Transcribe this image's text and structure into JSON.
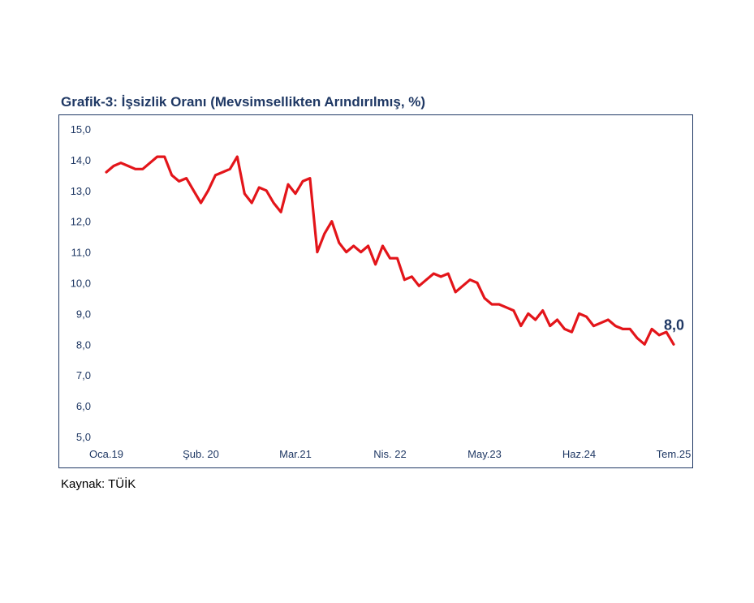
{
  "title": "Grafik-3: İşsizlik Oranı (Mevsimsellikten Arındırılmış, %)",
  "source": "Kaynak: TÜİK",
  "colors": {
    "line": "#e3151a",
    "title": "#1f3864",
    "label": "#1f3864"
  },
  "chart_data": {
    "type": "line",
    "title": "Grafik-3: İşsizlik Oranı (Mevsimsellikten Arındırılmış, %)",
    "xlabel": "",
    "ylabel": "",
    "ylim": [
      5.0,
      15.0
    ],
    "yticks": [
      "15,0",
      "14,0",
      "13,0",
      "12,0",
      "11,0",
      "10,0",
      "9,0",
      "8,0",
      "7,0",
      "6,0",
      "5,0"
    ],
    "x_tick_labels": [
      {
        "label": "Oca.19",
        "index": 0
      },
      {
        "label": "Şub. 20",
        "index": 13
      },
      {
        "label": "Mar.21",
        "index": 26
      },
      {
        "label": "Nis. 22",
        "index": 39
      },
      {
        "label": "May.23",
        "index": 52
      },
      {
        "label": "Haz.24",
        "index": 65
      },
      {
        "label": "Tem.25",
        "index": 78
      }
    ],
    "x_start": "Oca.19",
    "x_end": "Tem.25",
    "grid": false,
    "legend": "none",
    "end_label": "8,0",
    "series": [
      {
        "values": [
          13.6,
          13.8,
          13.9,
          13.8,
          13.7,
          13.7,
          13.9,
          14.1,
          14.1,
          13.5,
          13.3,
          13.4,
          13.0,
          12.6,
          13.0,
          13.5,
          13.6,
          13.7,
          14.1,
          12.9,
          12.6,
          13.1,
          13.0,
          12.6,
          12.3,
          13.2,
          12.9,
          13.3,
          13.4,
          11.0,
          11.6,
          12.0,
          11.3,
          11.0,
          11.2,
          11.0,
          11.2,
          10.6,
          11.2,
          10.8,
          10.8,
          10.1,
          10.2,
          9.9,
          10.1,
          10.3,
          10.2,
          10.3,
          9.7,
          9.9,
          10.1,
          10.0,
          9.5,
          9.3,
          9.3,
          9.2,
          9.1,
          8.6,
          9.0,
          8.8,
          9.1,
          8.6,
          8.8,
          8.5,
          8.4,
          9.0,
          8.9,
          8.6,
          8.7,
          8.8,
          8.6,
          8.5,
          8.5,
          8.2,
          8.0,
          8.5,
          8.3,
          8.4,
          8.0
        ]
      }
    ]
  }
}
